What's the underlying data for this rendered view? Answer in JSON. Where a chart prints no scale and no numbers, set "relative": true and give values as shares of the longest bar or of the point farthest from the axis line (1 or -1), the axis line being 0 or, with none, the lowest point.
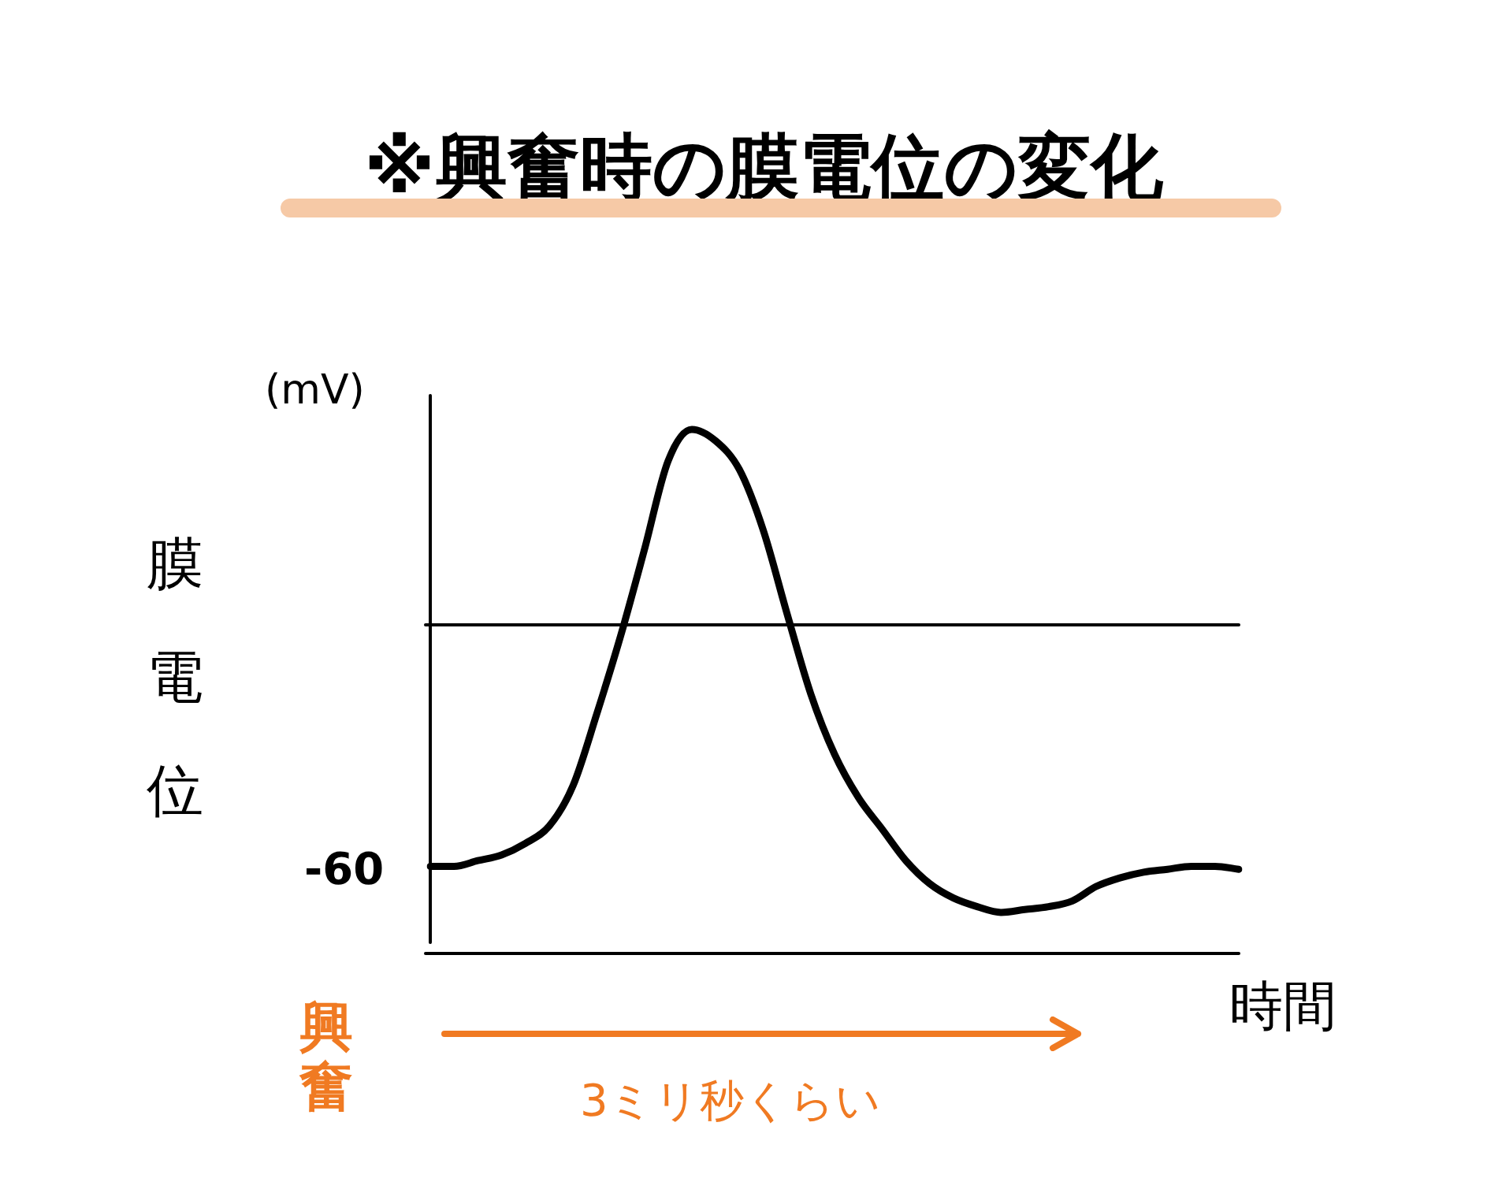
{
  "chart_data": {
    "type": "line",
    "title": "※興奮時の膜電位の変化",
    "ylabel": "膜電位",
    "xlabel": "時間",
    "relative": true,
    "legend": false,
    "marker": "none",
    "line_style": "solid",
    "annotations": [
      "(mV)",
      "-60",
      "興奮",
      "3ミリ秒くらい"
    ],
    "categories": [
      null,
      null,
      null,
      null,
      null,
      null,
      null,
      null,
      null,
      null,
      null,
      null,
      null,
      null,
      null,
      null,
      null,
      null,
      null,
      null,
      null,
      null,
      null,
      null,
      null,
      null,
      null,
      null,
      null,
      null,
      null,
      null,
      null,
      null,
      null
    ],
    "series": [
      {
        "color": "#000000",
        "values": [
          -0.84,
          -0.84,
          -0.82,
          -0.8,
          -0.76,
          -0.7,
          -0.56,
          -0.31,
          -0.04,
          0.26,
          0.57,
          0.68,
          0.64,
          0.54,
          0.33,
          0.04,
          -0.24,
          -0.45,
          -0.6,
          -0.71,
          -0.82,
          -0.9,
          -0.95,
          -0.98,
          -1,
          -0.99,
          -0.98,
          -0.96,
          -0.91,
          -0.88,
          -0.86,
          -0.85,
          -0.84,
          -0.84,
          -0.85
        ]
      }
    ]
  }
}
